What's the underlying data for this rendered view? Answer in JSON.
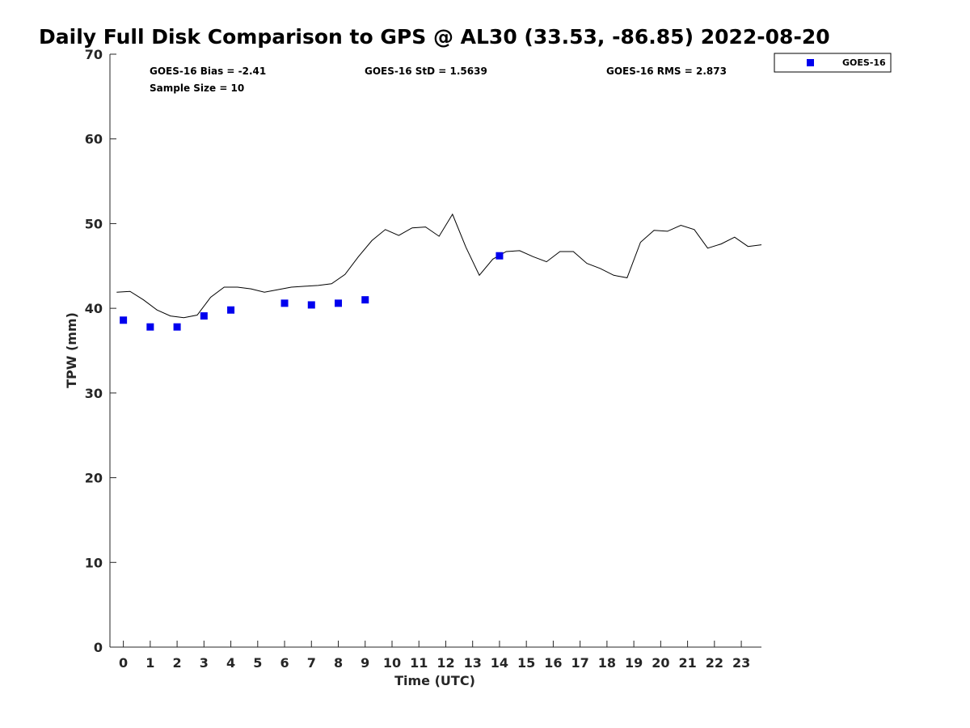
{
  "chart_data": {
    "type": "scatter",
    "title": "Daily Full Disk Comparison to GPS @ AL30 (33.53, -86.85) 2022-08-20",
    "xlabel": "Time (UTC)",
    "ylabel": "TPW (mm)",
    "xlim": [
      -0.5,
      23.75
    ],
    "ylim": [
      0,
      70
    ],
    "x_ticks": [
      0,
      1,
      2,
      3,
      4,
      5,
      6,
      7,
      8,
      9,
      10,
      11,
      12,
      13,
      14,
      15,
      16,
      17,
      18,
      19,
      20,
      21,
      22,
      23
    ],
    "y_ticks": [
      0,
      10,
      20,
      30,
      40,
      50,
      60,
      70
    ],
    "grid": false,
    "legend": {
      "position": "top-right outside",
      "entries": [
        "GOES-16"
      ]
    },
    "stats": {
      "bias": "GOES-16 Bias = -2.41",
      "std": "GOES-16 StD = 1.5639",
      "rms": "GOES-16 RMS = 2.873",
      "sample_size": "Sample Size = 10"
    },
    "series": [
      {
        "name": "GOES-16",
        "marker": "square",
        "color": "#0000ee",
        "x": [
          0,
          1,
          2,
          3,
          4,
          6,
          7,
          8,
          9,
          14
        ],
        "y": [
          38.6,
          37.8,
          37.8,
          39.1,
          39.8,
          40.6,
          40.4,
          40.6,
          41.0,
          46.2
        ]
      },
      {
        "line": "GPS",
        "color": "#000000",
        "x": [
          -0.25,
          0.25,
          0.75,
          1.25,
          1.75,
          2.25,
          2.75,
          3.25,
          3.75,
          4.25,
          4.75,
          5.25,
          5.75,
          6.25,
          6.75,
          7.25,
          7.75,
          8.25,
          8.75,
          9.25,
          9.75,
          10.25,
          10.75,
          11.25,
          11.75,
          12.25,
          12.75,
          13.25,
          13.75,
          14.25,
          14.75,
          15.25,
          15.75,
          16.25,
          16.75,
          17.25,
          17.75,
          18.25,
          18.75,
          19.25,
          19.75,
          20.25,
          20.75,
          21.25,
          21.75,
          22.25,
          22.75,
          23.25,
          23.75
        ],
        "y": [
          41.9,
          42.0,
          41.0,
          39.8,
          39.1,
          38.9,
          39.2,
          41.3,
          42.5,
          42.5,
          42.3,
          41.9,
          42.2,
          42.5,
          42.6,
          42.7,
          42.9,
          44.0,
          46.1,
          48.0,
          49.3,
          48.6,
          49.5,
          49.6,
          48.5,
          51.1,
          47.2,
          43.9,
          45.8,
          46.7,
          46.8,
          46.1,
          45.5,
          46.7,
          46.7,
          45.3,
          44.7,
          43.9,
          43.6,
          47.8,
          49.2,
          49.1,
          49.8,
          49.3,
          47.1,
          47.6,
          48.4,
          47.3,
          47.5
        ]
      }
    ]
  }
}
